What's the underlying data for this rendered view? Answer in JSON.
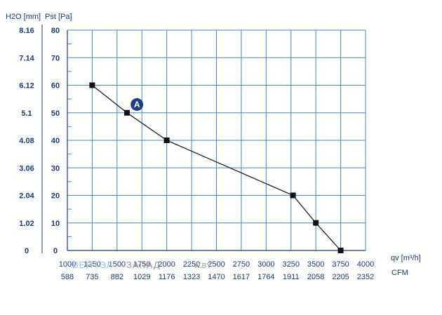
{
  "chart_data": {
    "type": "line",
    "title": "",
    "y_axis_left_label": "H2O [mm]",
    "y_axis_right_label": "Pst [Pa]",
    "x_axis_label": "qv [m³/h]",
    "x_axis_secondary_label": "CFM",
    "ylim": [
      0,
      80
    ],
    "xlim": [
      1000,
      4000
    ],
    "y_ticks_pa": [
      "0",
      "10",
      "20",
      "30",
      "40",
      "50",
      "60",
      "70",
      "80"
    ],
    "y_ticks_mm": [
      "0",
      "1.02",
      "2.04",
      "3.06",
      "4.08",
      "5.1",
      "6.12",
      "7.14",
      "8.16"
    ],
    "x_ticks_m3h": [
      "1000",
      "1250",
      "1500",
      "1750",
      "2000",
      "2250",
      "2500",
      "2750",
      "3000",
      "3250",
      "3500",
      "3750",
      "4000"
    ],
    "x_ticks_cfm": [
      "588",
      "735",
      "882",
      "1029",
      "1176",
      "1323",
      "1470",
      "1617",
      "1764",
      "1911",
      "2058",
      "2205",
      "2352"
    ],
    "series": [
      {
        "name": "A",
        "x": [
          1250,
          1600,
          2000,
          3270,
          3500,
          3750
        ],
        "y": [
          60,
          50,
          40,
          20,
          10,
          0
        ]
      }
    ],
    "marker_label": "A",
    "marker_label_x": 1700,
    "marker_label_y": 53,
    "grid": true,
    "legend": "none",
    "colors": {
      "grid": "#4a86c8",
      "text": "#1d3a78",
      "curve": "#111111",
      "badge": "#1f3f87"
    }
  },
  "watermark": {
    "brand_left": "ВЕНТЭЛ",
    "brand_right": "ЗАПАД",
    "site": "W.BY"
  }
}
